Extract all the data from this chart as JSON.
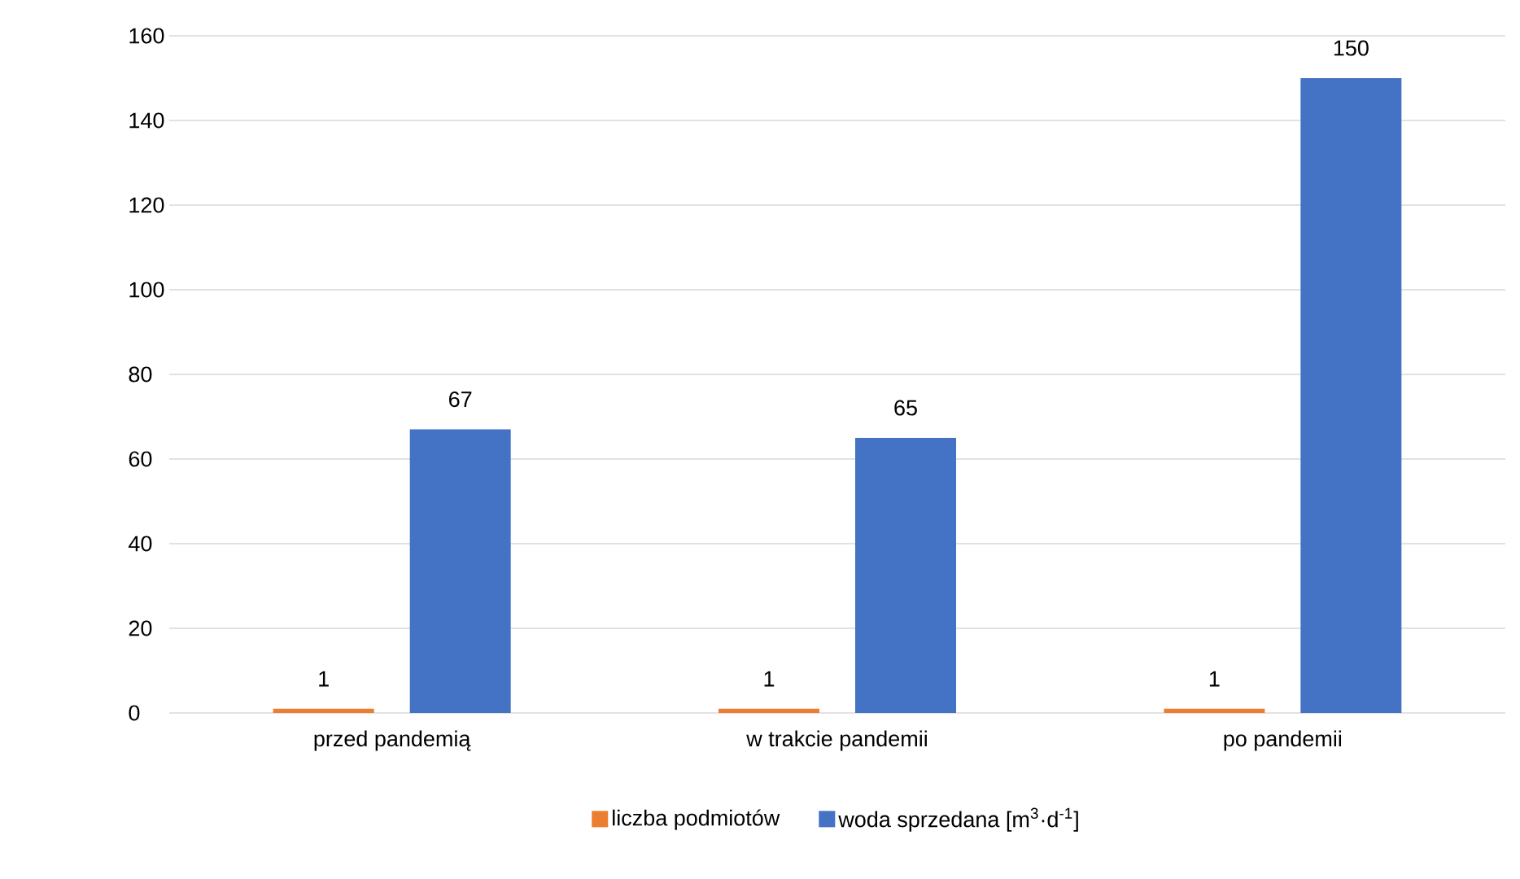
{
  "chart_data": {
    "type": "bar",
    "categories": [
      "przed pandemią",
      "w trakcie pandemii",
      "po pandemii"
    ],
    "series": [
      {
        "name": "liczba podmiotów",
        "color": "#ed7d31",
        "values": [
          1,
          1,
          1
        ]
      },
      {
        "name": "woda sprzedana [m$^{3}$·d$^{-1}$]",
        "color": "#4472c4",
        "values": [
          67,
          65,
          150
        ]
      }
    ],
    "ylim": [
      0,
      160
    ],
    "yticks": [
      0,
      20,
      40,
      60,
      80,
      100,
      120,
      140,
      160
    ],
    "grid": "y",
    "legend": "bottom",
    "data_labels": true
  }
}
